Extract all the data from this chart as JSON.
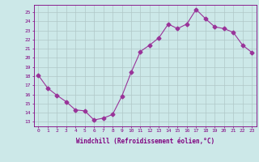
{
  "x": [
    0,
    1,
    2,
    3,
    4,
    5,
    6,
    7,
    8,
    9,
    10,
    11,
    12,
    13,
    14,
    15,
    16,
    17,
    18,
    19,
    20,
    21,
    22,
    23
  ],
  "y": [
    18.1,
    16.7,
    15.9,
    15.2,
    14.3,
    14.2,
    13.2,
    13.4,
    13.8,
    15.8,
    18.4,
    20.7,
    21.4,
    22.2,
    23.7,
    23.2,
    23.7,
    25.3,
    24.3,
    23.4,
    23.2,
    22.8,
    21.4,
    20.6
  ],
  "line_color": "#993399",
  "marker": "D",
  "markersize": 2.5,
  "bg_color": "#cce8e8",
  "grid_color": "#b0c8c8",
  "xlabel": "Windchill (Refroidissement éolien,°C)",
  "ylabel_ticks": [
    13,
    14,
    15,
    16,
    17,
    18,
    19,
    20,
    21,
    22,
    23,
    24,
    25
  ],
  "xtick_labels": [
    "0",
    "1",
    "2",
    "3",
    "4",
    "5",
    "6",
    "7",
    "8",
    "9",
    "10",
    "11",
    "12",
    "13",
    "14",
    "15",
    "16",
    "17",
    "18",
    "19",
    "20",
    "21",
    "22",
    "23"
  ],
  "ylim": [
    12.5,
    25.8
  ],
  "xlim": [
    -0.5,
    23.5
  ],
  "axis_color": "#800080",
  "tick_color": "#800080",
  "label_color": "#800080"
}
